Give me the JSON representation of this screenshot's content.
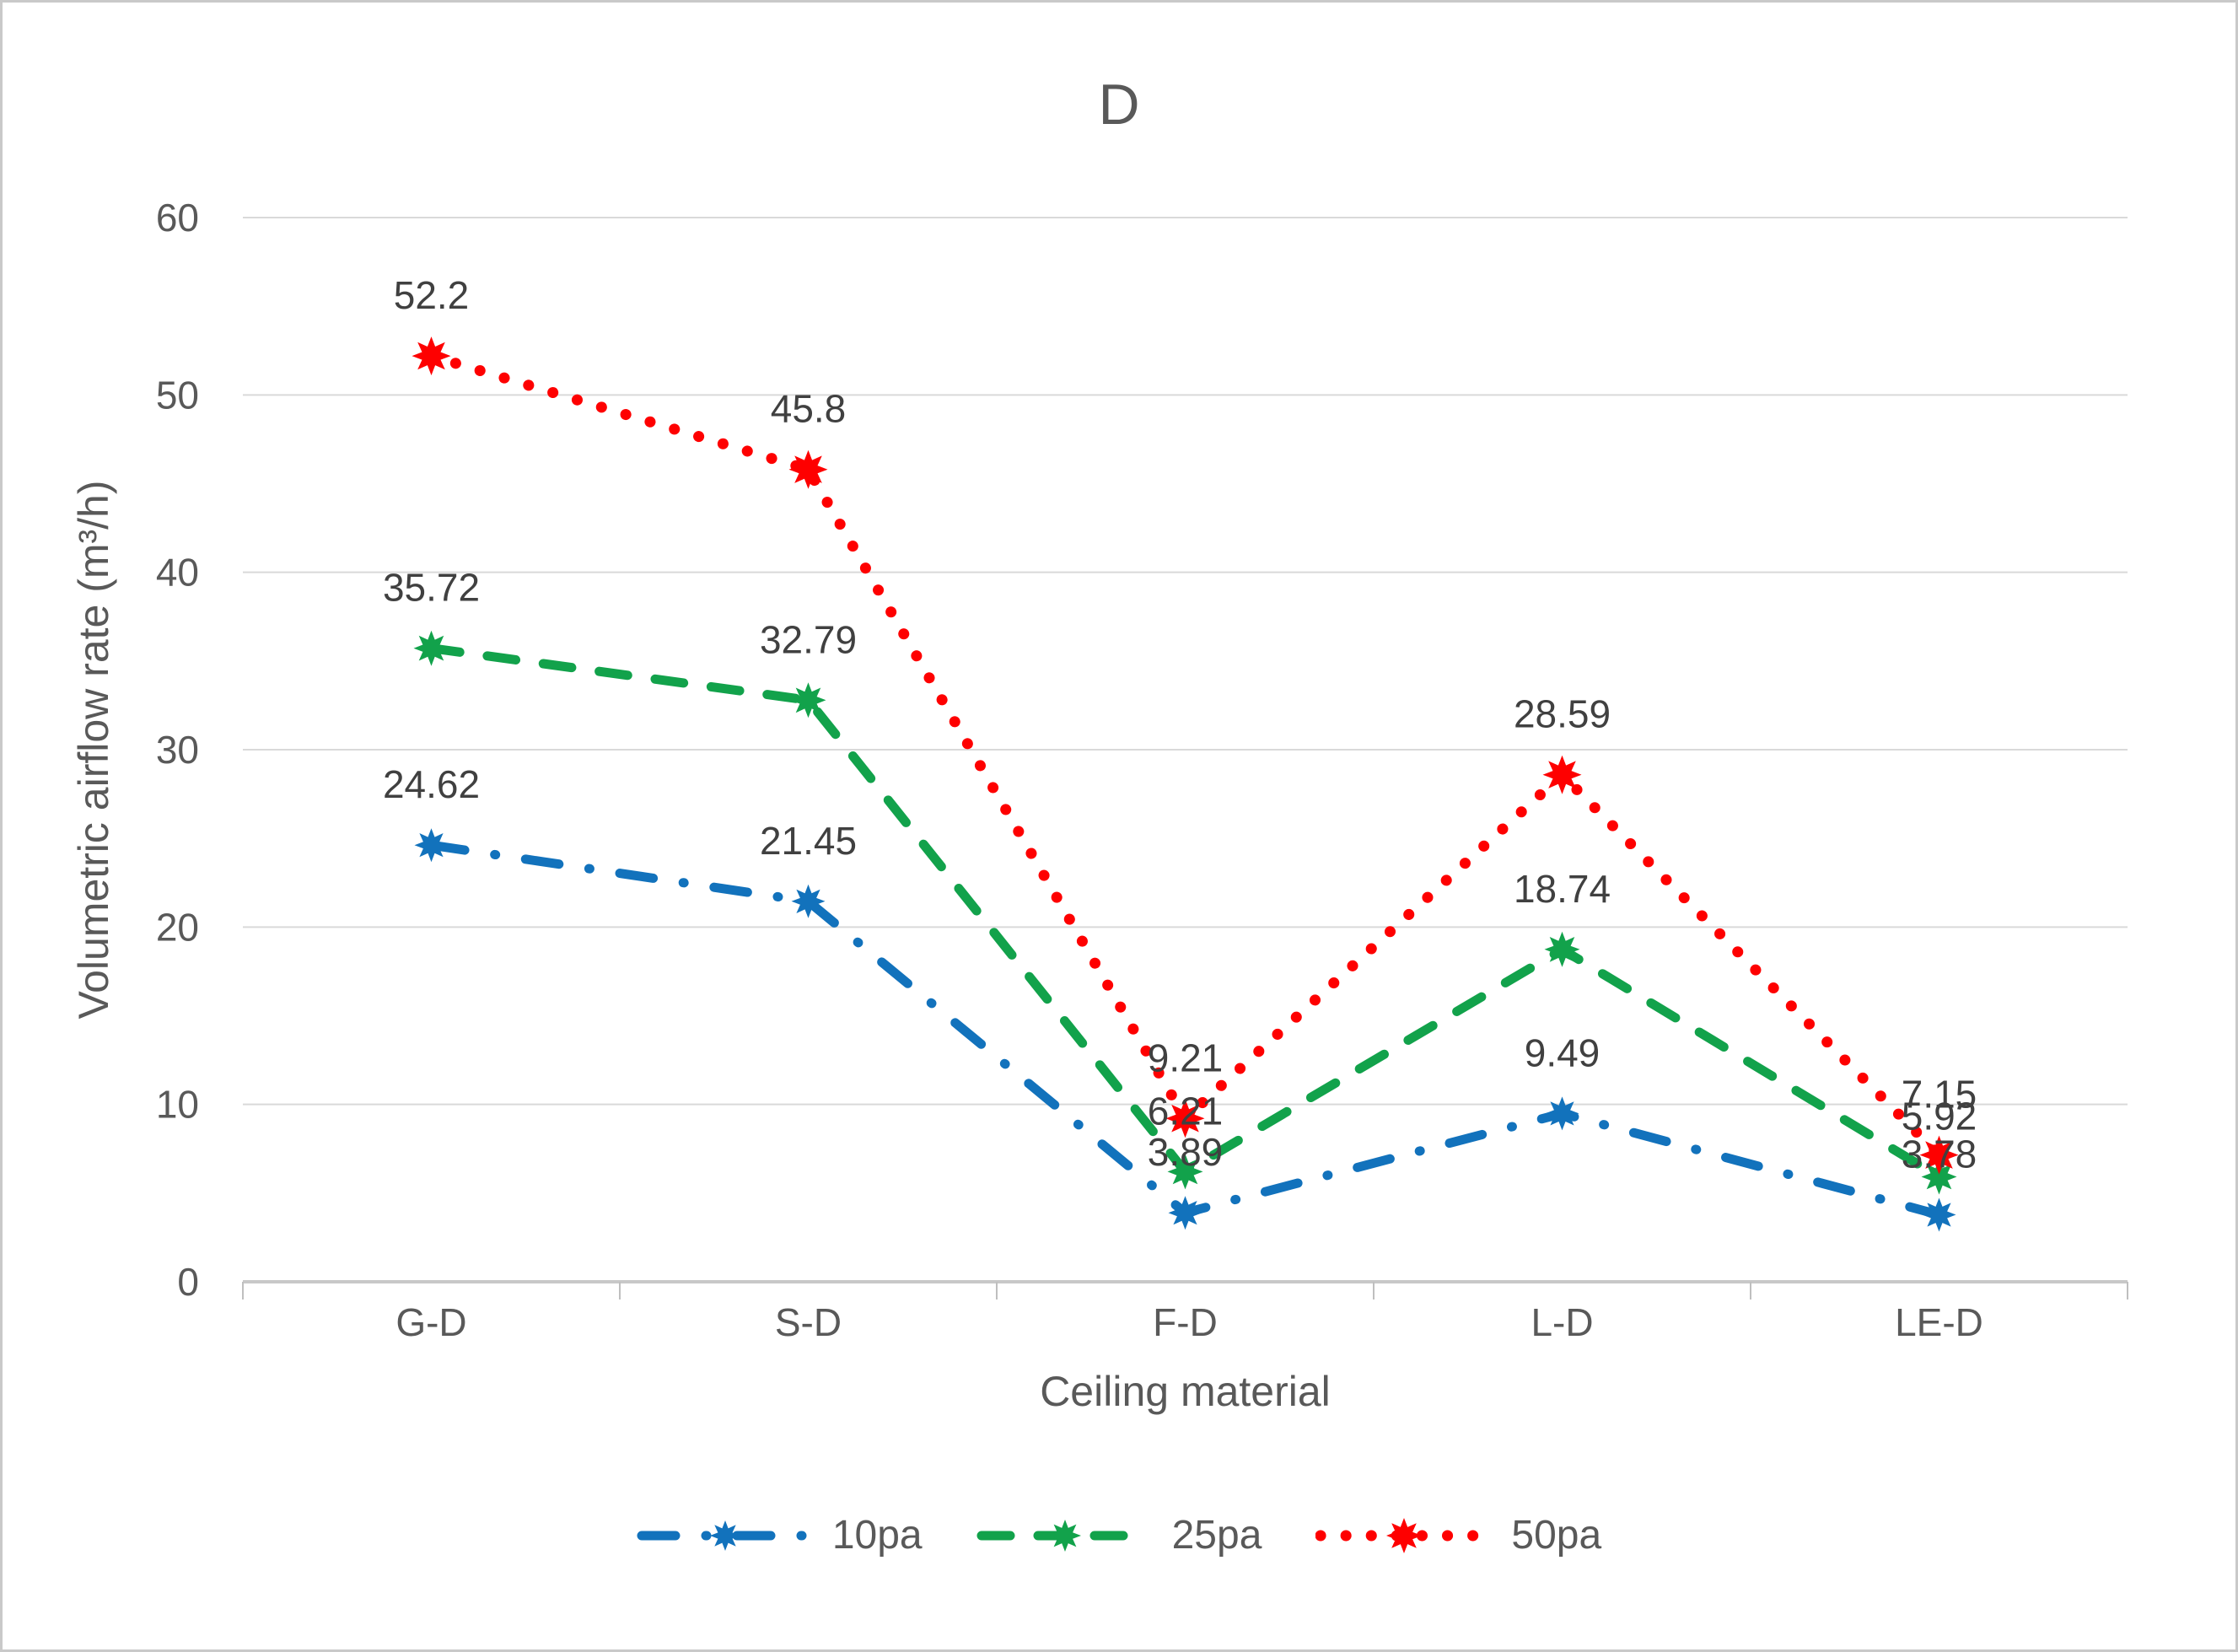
{
  "chart_data": {
    "type": "line",
    "title": "D",
    "xlabel": "Ceiling material",
    "ylabel": "Volumetric airflow rate (m³/h)",
    "categories": [
      "G-D",
      "S-D",
      "F-D",
      "L-D",
      "LE-D"
    ],
    "y_ticks": [
      0,
      10,
      20,
      30,
      40,
      50,
      60
    ],
    "ylim": [
      0,
      60
    ],
    "grid": true,
    "legend_position": "bottom",
    "series": [
      {
        "name": "10pa",
        "color": "#1272BC",
        "dash": "dashdot",
        "values": [
          24.62,
          21.45,
          3.89,
          9.49,
          3.78
        ],
        "labels": [
          "24.62",
          "21.45",
          "3.89",
          "9.49",
          "3.78"
        ]
      },
      {
        "name": "25pa",
        "color": "#12A24B",
        "dash": "dashed",
        "values": [
          35.72,
          32.79,
          6.21,
          18.74,
          5.92
        ],
        "labels": [
          "35.72",
          "32.79",
          "6.21",
          "18.74",
          "5.92"
        ]
      },
      {
        "name": "50pa",
        "color": "#FE0000",
        "dash": "dotted",
        "values": [
          52.2,
          45.8,
          9.21,
          28.59,
          7.15
        ],
        "labels": [
          "52.2",
          "45.8",
          "9.21",
          "28.59",
          "7.15"
        ]
      }
    ],
    "colors": {
      "grid": "#d9d9d9",
      "axis": "#c8c8c8",
      "tick": "#bfbfbf",
      "tick_text": "#595959",
      "data_label_text": "#404040"
    }
  }
}
